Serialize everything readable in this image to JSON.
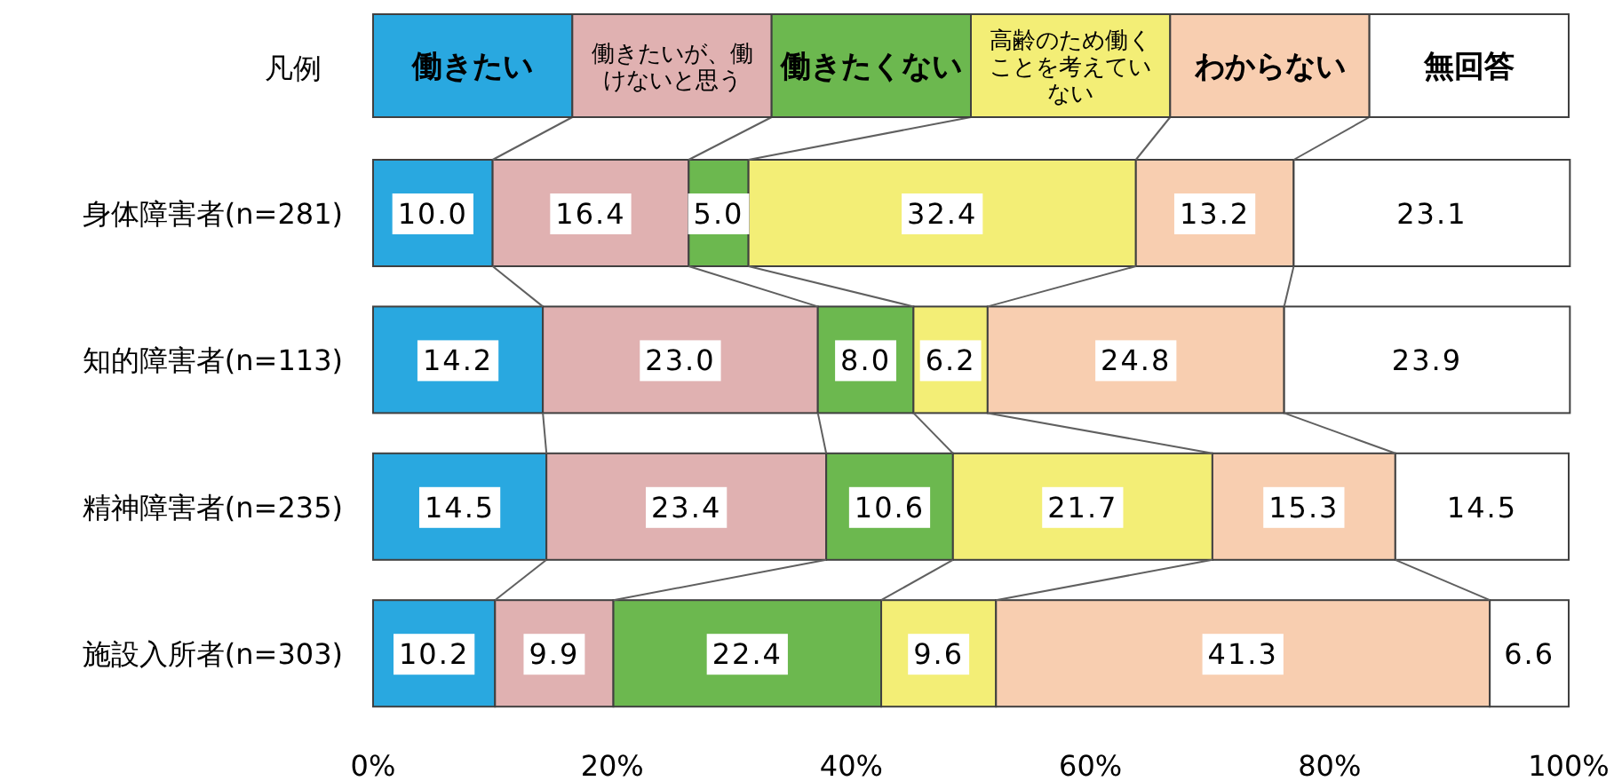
{
  "chart_data": {
    "type": "bar",
    "orientation": "horizontal",
    "stacked": true,
    "legend_title": "凡例",
    "legend": "top",
    "categories": [
      "身体障害者(n=281)",
      "知的障害者(n=113)",
      "精神障害者(n=235)",
      "施設入所者(n=303)"
    ],
    "series": [
      {
        "name": "働きたい",
        "color": "#29a8e0",
        "values": [
          10.0,
          14.2,
          14.5,
          10.2
        ],
        "value_labels": [
          "10.0",
          "14.2",
          "14.5",
          "10.2"
        ]
      },
      {
        "name": "働きたいが、働けないと思う",
        "color": "#e0b1b1",
        "values": [
          16.4,
          23.0,
          23.4,
          9.9
        ],
        "value_labels": [
          "16.4",
          "23.0",
          "23.4",
          "9.9"
        ]
      },
      {
        "name": "働きたくない",
        "color": "#6cb84f",
        "values": [
          5.0,
          8.0,
          10.6,
          22.4
        ],
        "value_labels": [
          "5.0",
          "8.0",
          "10.6",
          "22.4"
        ]
      },
      {
        "name": "高齢のため働くことを考えていない",
        "color": "#f3ee76",
        "values": [
          32.4,
          6.2,
          21.7,
          9.6
        ],
        "value_labels": [
          "32.4",
          "6.2",
          "21.7",
          "9.6"
        ]
      },
      {
        "name": "わからない",
        "color": "#f8ceb0",
        "values": [
          13.2,
          24.8,
          15.3,
          41.3
        ],
        "value_labels": [
          "13.2",
          "24.8",
          "15.3",
          "41.3"
        ]
      },
      {
        "name": "無回答",
        "color": "#ffffff",
        "values": [
          23.1,
          23.9,
          14.5,
          6.6
        ],
        "value_labels": [
          "23.1",
          "23.9",
          "14.5",
          "6.6"
        ]
      }
    ],
    "xlim": [
      0,
      100
    ],
    "xticks": [
      {
        "value": 0,
        "label": "0%"
      },
      {
        "value": 20,
        "label": "20%"
      },
      {
        "value": 40,
        "label": "40%"
      },
      {
        "value": 60,
        "label": "60%"
      },
      {
        "value": 80,
        "label": "80%"
      },
      {
        "value": 100,
        "label": "100%"
      }
    ]
  }
}
